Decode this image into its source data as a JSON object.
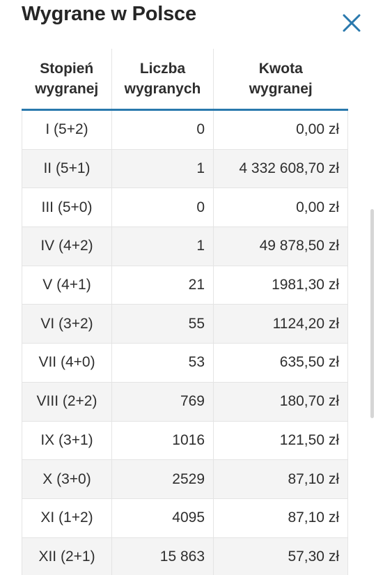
{
  "dialog": {
    "title": "Wygrane w Polsce",
    "close_icon": "close-icon"
  },
  "table": {
    "headers": {
      "stage_line1": "Stopień",
      "stage_line2": "wygranej",
      "count_line1": "Liczba",
      "count_line2": "wygranych",
      "amount_line1": "Kwota",
      "amount_line2": "wygranej"
    },
    "rows": [
      {
        "stage": "I (5+2)",
        "count": "0",
        "amount": "0,00 zł"
      },
      {
        "stage": "II (5+1)",
        "count": "1",
        "amount": "4 332 608,70 zł"
      },
      {
        "stage": "III (5+0)",
        "count": "0",
        "amount": "0,00 zł"
      },
      {
        "stage": "IV (4+2)",
        "count": "1",
        "amount": "49 878,50 zł"
      },
      {
        "stage": "V (4+1)",
        "count": "21",
        "amount": "1981,30 zł"
      },
      {
        "stage": "VI (3+2)",
        "count": "55",
        "amount": "1124,20 zł"
      },
      {
        "stage": "VII (4+0)",
        "count": "53",
        "amount": "635,50 zł"
      },
      {
        "stage": "VIII (2+2)",
        "count": "769",
        "amount": "180,70 zł"
      },
      {
        "stage": "IX (3+1)",
        "count": "1016",
        "amount": "121,50 zł"
      },
      {
        "stage": "X (3+0)",
        "count": "2529",
        "amount": "87,10 zł"
      },
      {
        "stage": "XI (1+2)",
        "count": "4095",
        "amount": "87,10 zł"
      },
      {
        "stage": "XII (2+1)",
        "count": "15 863",
        "amount": "57,30 zł"
      }
    ]
  },
  "colors": {
    "accent": "#2a79ad",
    "row_alt": "#f4f4f4",
    "text": "#2e2e2e"
  }
}
